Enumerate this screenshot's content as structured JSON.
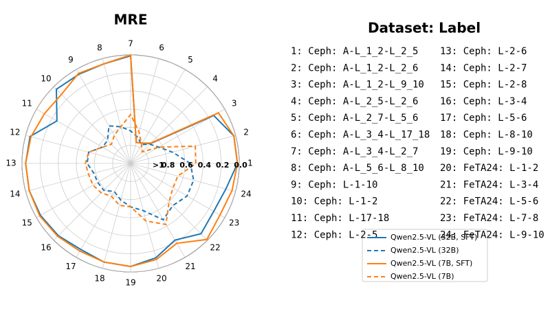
{
  "chart_data": {
    "type": "radar",
    "title": "MRE",
    "categories": [
      "1",
      "2",
      "3",
      "4",
      "5",
      "6",
      "7",
      "8",
      "9",
      "10",
      "11",
      "12",
      "13",
      "14",
      "15",
      "16",
      "17",
      "18",
      "19",
      "20",
      "21",
      "22",
      "23",
      "24"
    ],
    "ylim": [
      1.2,
      0
    ],
    "yticks": [
      {
        "value": 1,
        "label": ">1"
      },
      0.8,
      0.6,
      0.4,
      0.2,
      {
        "value": 0,
        "label": "0.0"
      }
    ],
    "grid": true,
    "series": [
      {
        "name": "Qwen2.5-VL (32B, SFT)",
        "color": "#1f77b4",
        "linestyle": "solid",
        "values": [
          0.02,
          0.02,
          0.14,
          0.89,
          0.94,
          0.96,
          0.01,
          0.06,
          0.06,
          0.04,
          0.26,
          0.05,
          0.04,
          0.04,
          0.05,
          0.07,
          0.1,
          0.07,
          0.06,
          0.12,
          0.22,
          0.1,
          0.14,
          0.11
        ]
      },
      {
        "name": "Qwen2.5-VL (32B)",
        "color": "#1f77b4",
        "linestyle": "dashed",
        "values": [
          0.54,
          0.72,
          0.84,
          0.9,
          0.96,
          0.9,
          0.84,
          0.78,
          0.72,
          0.84,
          0.84,
          0.72,
          0.72,
          0.78,
          0.78,
          0.78,
          0.84,
          0.78,
          0.72,
          0.66,
          0.48,
          0.54,
          0.48,
          0.48
        ]
      },
      {
        "name": "Qwen2.5-VL (7B, SFT)",
        "color": "#ff7f0e",
        "linestyle": "solid",
        "values": [
          0.02,
          0.02,
          0.08,
          0.88,
          0.94,
          0.96,
          0.0,
          0.06,
          0.05,
          0.12,
          0.1,
          0.06,
          0.04,
          0.04,
          0.04,
          0.06,
          0.08,
          0.07,
          0.06,
          0.1,
          0.18,
          0.01,
          0.06,
          0.04
        ]
      },
      {
        "name": "Qwen2.5-VL (7B)",
        "color": "#ff7f0e",
        "linestyle": "dashed",
        "values": [
          0.48,
          0.46,
          0.84,
          1.02,
          0.96,
          0.84,
          0.66,
          0.78,
          0.84,
          0.9,
          0.84,
          0.72,
          0.7,
          0.72,
          0.72,
          0.74,
          0.78,
          0.72,
          0.72,
          0.54,
          0.42,
          0.6,
          0.66,
          0.66
        ]
      }
    ],
    "legend_title": "Dataset: Label",
    "category_descriptions": [
      "1: Ceph: A-L_1_2-L_2_5",
      "2: Ceph: A-L_1_2-L_2_6",
      "3: Ceph: A-L_1_2-L_9_10",
      "4: Ceph: A-L_2_5-L_2_6",
      "5: Ceph: A-L_2_7-L_5_6",
      "6: Ceph: A-L_3_4-L_17_18",
      "7: Ceph: A-L_3_4-L_2_7",
      "8: Ceph: A-L_5_6-L_8_10",
      "9: Ceph: L-1-10",
      "10: Ceph: L-1-2",
      "11: Ceph: L-17-18",
      "12: Ceph: L-2-5",
      "13: Ceph: L-2-6",
      "14: Ceph: L-2-7",
      "15: Ceph: L-2-8",
      "16: Ceph: L-3-4",
      "17: Ceph: L-5-6",
      "18: Ceph: L-8-10",
      "19: Ceph: L-9-10",
      "20: FeTA24: L-1-2",
      "21: FeTA24: L-3-4",
      "22: FeTA24: L-5-6",
      "23: FeTA24: L-7-8",
      "24: FeTA24: L-9-10"
    ]
  }
}
